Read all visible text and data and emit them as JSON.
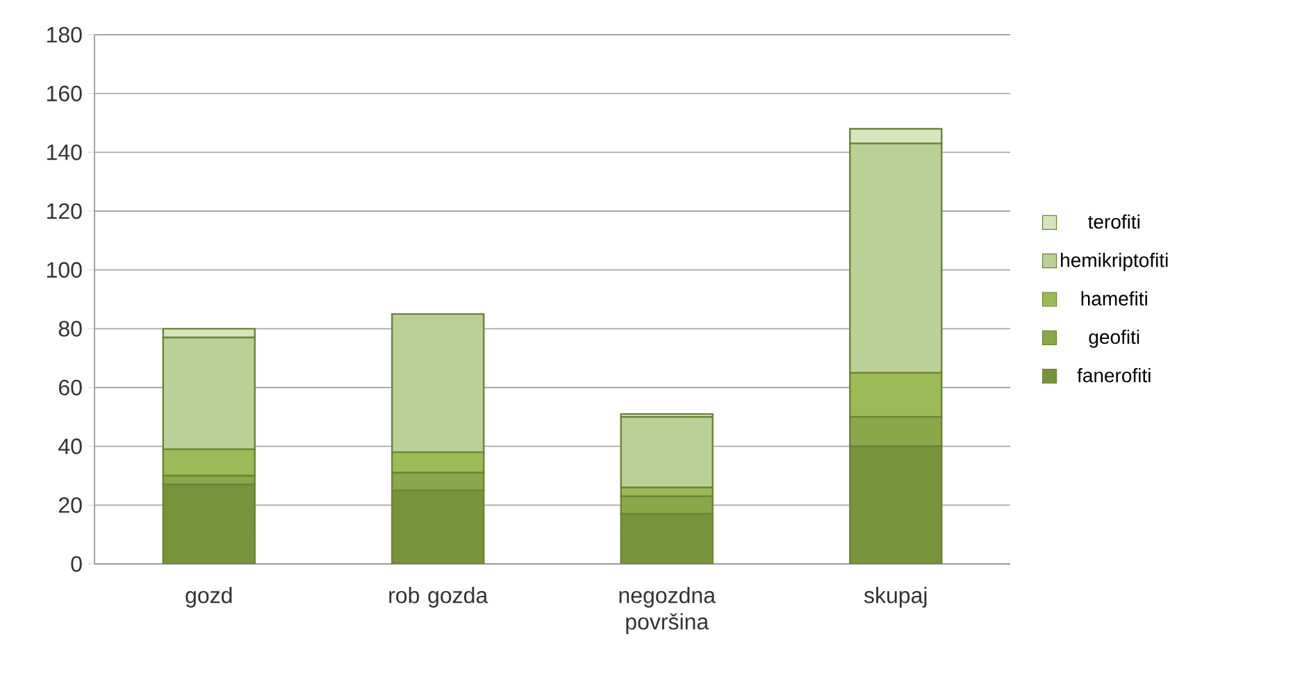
{
  "chart_data": {
    "type": "bar",
    "stacked": true,
    "categories": [
      "gozd",
      "rob gozda",
      "negozdna površina",
      "skupaj"
    ],
    "series": [
      {
        "name": "fanerofiti",
        "color": "#77933c",
        "values": [
          27,
          25,
          17,
          40
        ]
      },
      {
        "name": "geofiti",
        "color": "#8aa74a",
        "values": [
          3,
          6,
          6,
          10
        ]
      },
      {
        "name": "hamefiti",
        "color": "#9bbb59",
        "values": [
          9,
          7,
          3,
          15
        ]
      },
      {
        "name": "hemikriptofiti",
        "color": "#bbcf97",
        "values": [
          38,
          47,
          24,
          78
        ]
      },
      {
        "name": "terofiti",
        "color": "#d7e4bd",
        "values": [
          3,
          0,
          1,
          5
        ]
      }
    ],
    "ylim": [
      0,
      180
    ],
    "yticks": [
      0,
      20,
      40,
      60,
      80,
      100,
      120,
      140,
      160,
      180
    ],
    "grid": "y",
    "legend": "right"
  }
}
